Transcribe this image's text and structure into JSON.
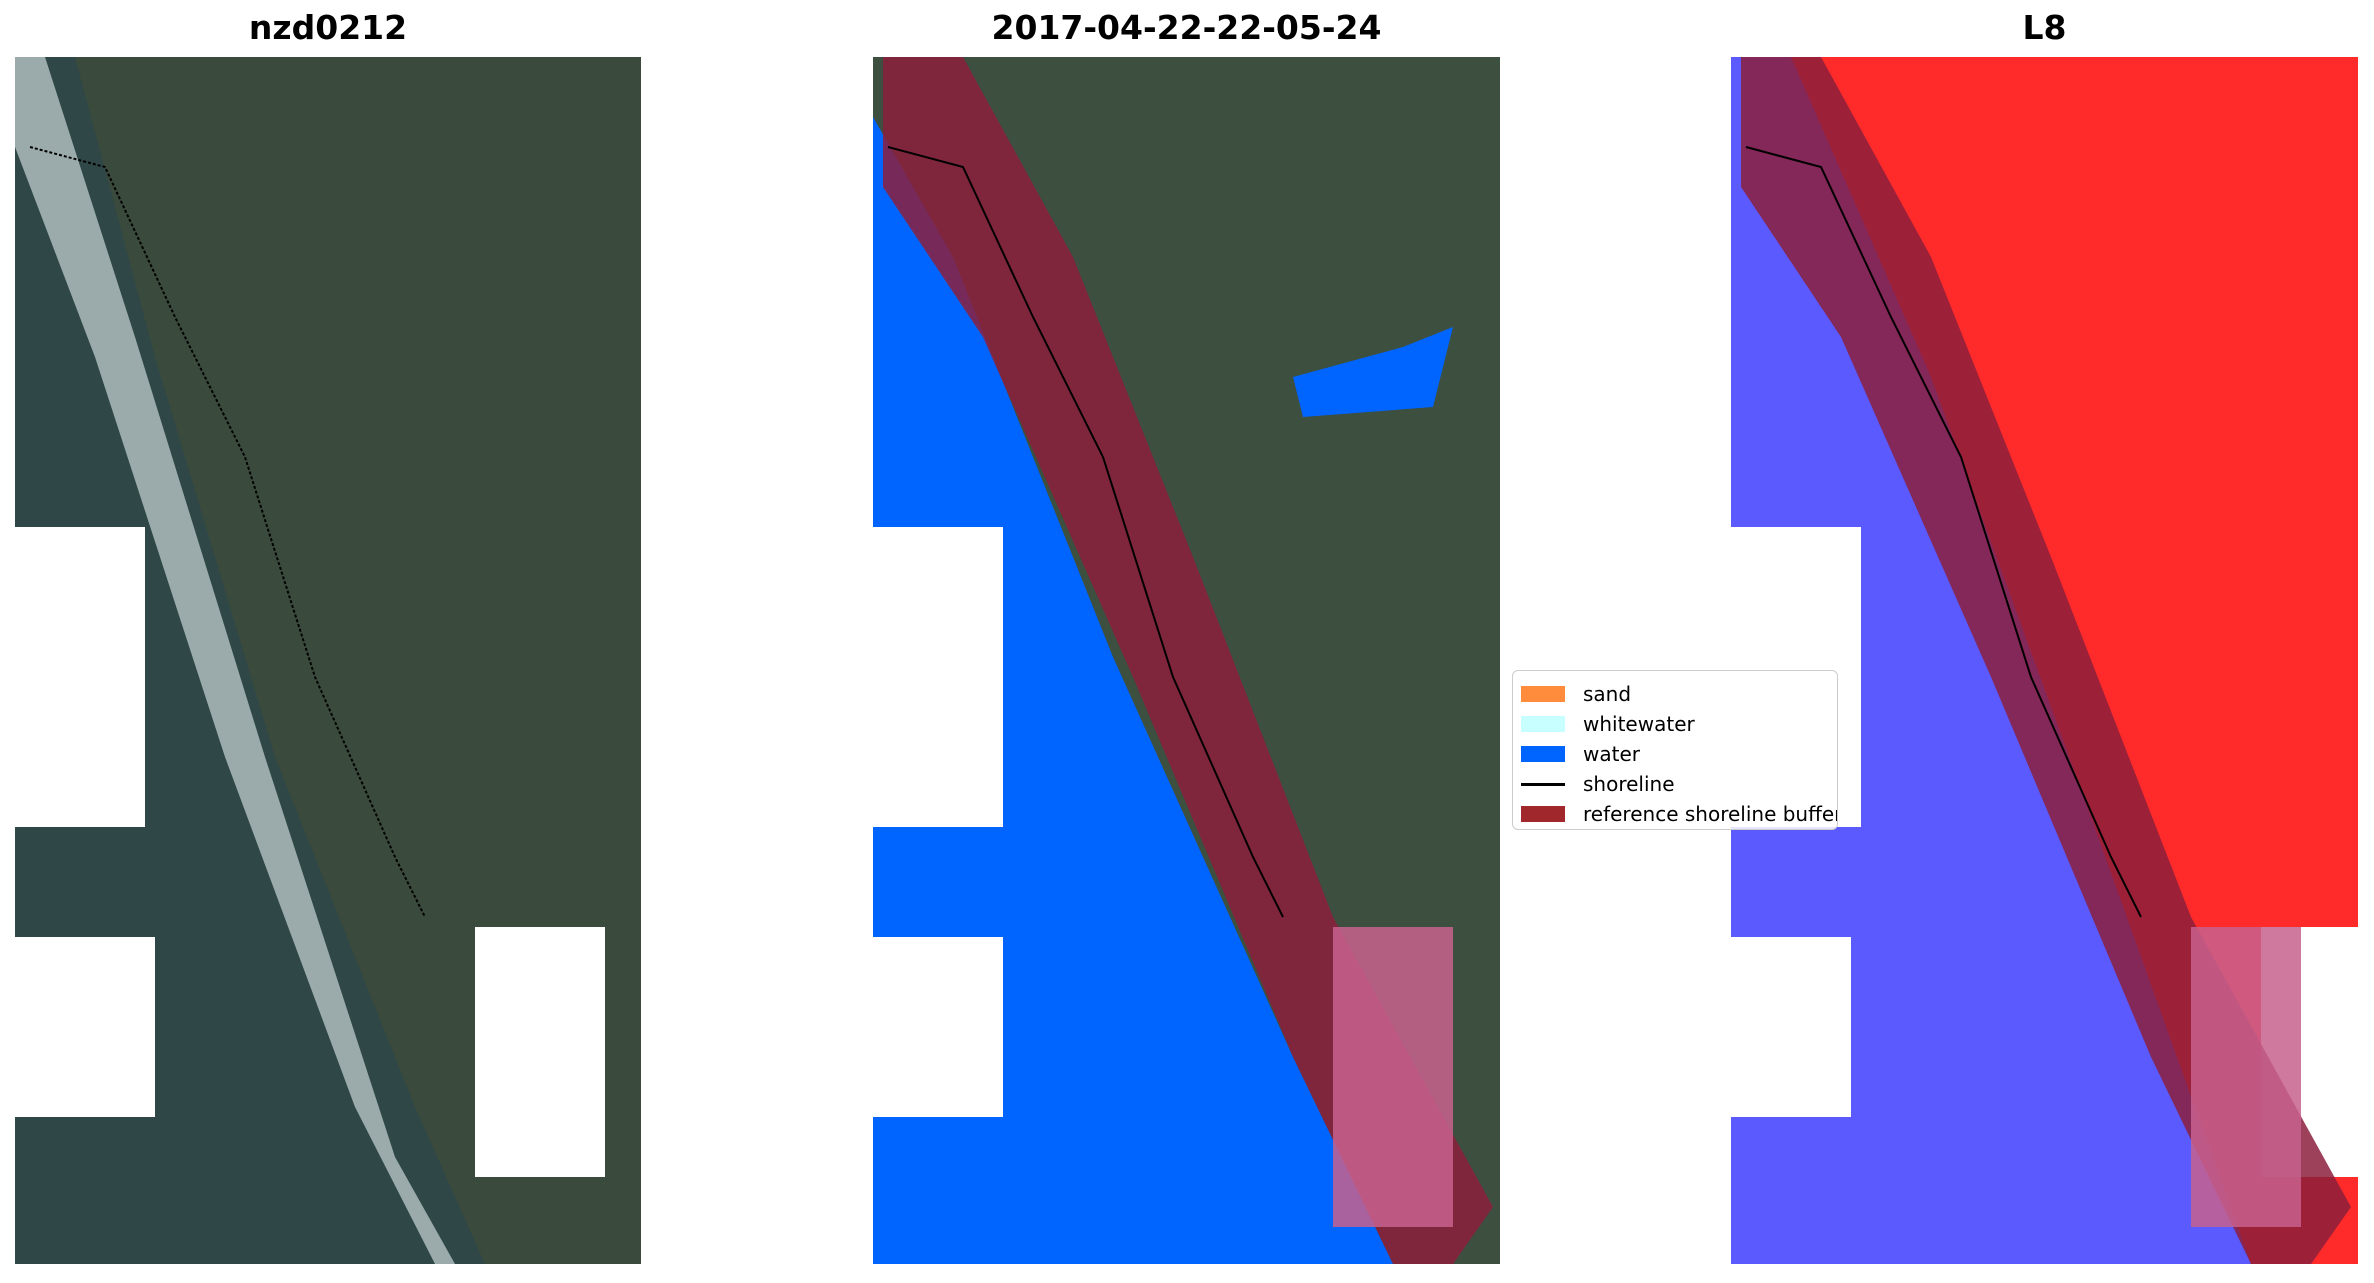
{
  "panels": [
    {
      "title": "nzd0212",
      "type": "rgb-image"
    },
    {
      "title": "2017-04-22-22-05-24",
      "type": "classified-image"
    },
    {
      "title": "L8",
      "type": "index-image"
    }
  ],
  "legend": {
    "items": [
      {
        "label": "sand",
        "color": "#ff8c3c",
        "kind": "patch"
      },
      {
        "label": "whitewater",
        "color": "#c8ffff",
        "kind": "patch"
      },
      {
        "label": "water",
        "color": "#0064ff",
        "kind": "patch"
      },
      {
        "label": "shoreline",
        "color": "#000000",
        "kind": "line"
      },
      {
        "label": "reference shoreline buffer",
        "color": "#a0282d",
        "kind": "patch"
      }
    ]
  },
  "colors": {
    "land": "#3d4f3f",
    "ocean": "#2f4a4a",
    "cloud": "#ffffff",
    "water": "#0064ff",
    "buffer": "#8c1e3c",
    "index_positive": "#ff2020",
    "index_negative": "#4040ff"
  }
}
